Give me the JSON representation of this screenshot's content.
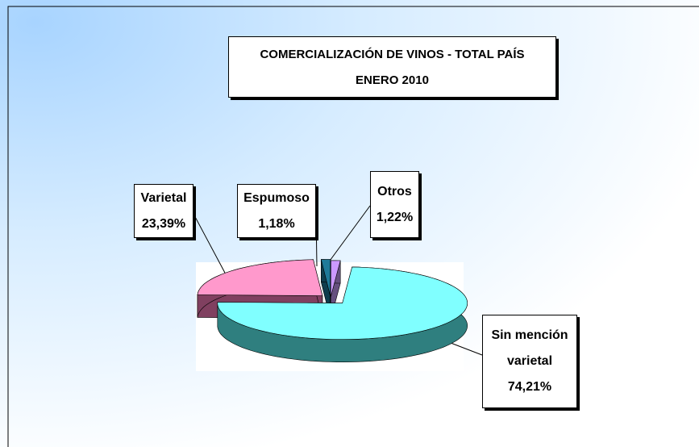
{
  "chart_data": {
    "type": "pie",
    "title": "COMERCIALIZACIÓN DE VINOS - TOTAL PAÍS",
    "subtitle": "ENERO 2010",
    "categories": [
      "Varietal",
      "Espumoso",
      "Otros",
      "Sin mención varietal"
    ],
    "values": [
      23.39,
      1.18,
      1.22,
      74.21
    ],
    "value_labels": [
      "23,39%",
      "1,18%",
      "1,22%",
      "74,21%"
    ],
    "colors": [
      "#ff99cc",
      "#1f7a99",
      "#cc99ff",
      "#80ffff"
    ],
    "side_colors": [
      "#804060",
      "#0f3d4d",
      "#66507f",
      "#2f7f7f"
    ]
  }
}
